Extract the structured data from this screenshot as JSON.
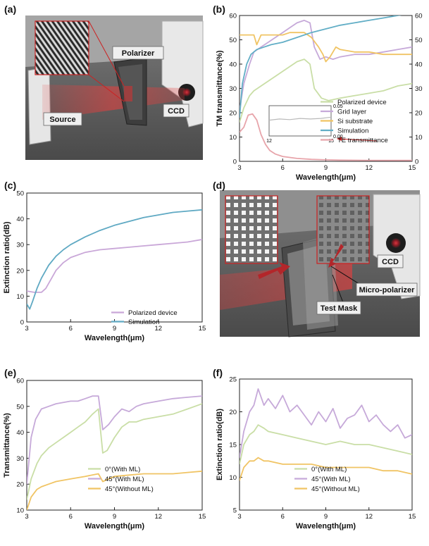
{
  "panels": {
    "a": {
      "letter": "(a)",
      "labels": {
        "polarizer": "Polarizer",
        "ccd": "CCD",
        "source": "Source"
      }
    },
    "d": {
      "letter": "(d)",
      "labels": {
        "ccd": "CCD",
        "micro_polarizer": "Micro-polarizer",
        "test_mask": "Test Mask"
      }
    }
  },
  "chart_data": [
    {
      "id": "b",
      "letter": "(b)",
      "type": "line",
      "xlabel": "Wavelength(μm)",
      "ylabel": "TM transmittance(%)",
      "xlim": [
        3,
        15
      ],
      "xticks": [
        3,
        6,
        9,
        12,
        15
      ],
      "ylim": [
        0,
        60
      ],
      "yticks": [
        0,
        10,
        20,
        30,
        40,
        50,
        60
      ],
      "y2lim": [
        0,
        60
      ],
      "y2ticks": [
        0,
        10,
        20,
        30,
        40,
        50,
        60
      ],
      "legend_position": "right",
      "series": [
        {
          "name": "Polarized device",
          "color": "#c9dea6",
          "x": [
            3,
            3.3,
            3.7,
            4,
            4.5,
            5,
            5.5,
            6,
            6.5,
            7,
            7.5,
            7.9,
            8.2,
            8.7,
            9.2,
            10,
            11,
            12,
            13,
            14,
            15
          ],
          "y": [
            16,
            22,
            27,
            29,
            31,
            33,
            35,
            37,
            39,
            41,
            42,
            40,
            30,
            26,
            25,
            26,
            27,
            28,
            29,
            31,
            32
          ]
        },
        {
          "name": "Grid layer",
          "color": "#c6a9d9",
          "x": [
            3,
            3.3,
            3.7,
            4,
            4.5,
            5,
            5.5,
            6,
            6.5,
            7,
            7.5,
            7.9,
            8.2,
            8.6,
            9,
            9.5,
            10,
            11,
            12,
            13,
            14,
            15
          ],
          "y": [
            21,
            32,
            40,
            45,
            47,
            49,
            51,
            53,
            55,
            57,
            58,
            57,
            47,
            42,
            43,
            42,
            43,
            44,
            44,
            45,
            46,
            47
          ]
        },
        {
          "name": "Si substrate",
          "color": "#f0c464",
          "x": [
            3,
            3.5,
            4,
            4.2,
            4.5,
            5,
            5.5,
            6,
            6.5,
            7,
            7.5,
            8,
            8.5,
            8.8,
            9,
            9.3,
            9.7,
            10,
            11,
            12,
            13,
            14,
            15
          ],
          "y": [
            52,
            52,
            52,
            48,
            52,
            52,
            52,
            52,
            53,
            53,
            53,
            51,
            47,
            44,
            41,
            43,
            47,
            46,
            45,
            45,
            44,
            44,
            44
          ]
        },
        {
          "name": "Simulation",
          "color": "#62aec6",
          "x": [
            3,
            3.2,
            3.5,
            3.8,
            4.2,
            4.7,
            5.2,
            6,
            7,
            8,
            9,
            10,
            11,
            12,
            13,
            14,
            15
          ],
          "y": [
            18,
            32,
            40,
            44,
            46,
            47,
            48,
            49,
            51,
            53,
            54.5,
            56,
            57,
            58,
            59,
            60,
            61
          ]
        },
        {
          "name": "TE transmittance",
          "color": "#e7a4aa",
          "x": [
            3,
            3.3,
            3.6,
            3.9,
            4.2,
            4.5,
            4.8,
            5.1,
            5.5,
            6,
            7,
            8,
            9,
            10,
            12,
            15
          ],
          "y": [
            12,
            14,
            19,
            19.5,
            17,
            11,
            7,
            4.5,
            3,
            2,
            1.2,
            0.8,
            0.6,
            0.5,
            0.4,
            0.4
          ]
        }
      ],
      "inset": {
        "xticks": [
          12,
          15
        ],
        "yticks": [
          0.0,
          0.05
        ],
        "color": "#b9b9b9",
        "x": [
          12,
          12.5,
          13,
          13.5,
          14,
          14.5,
          15
        ],
        "y": [
          0.026,
          0.028,
          0.027,
          0.029,
          0.028,
          0.029,
          0.031
        ]
      }
    },
    {
      "id": "c",
      "letter": "(c)",
      "type": "line",
      "xlabel": "Wavelength(μm)",
      "ylabel": "Extinction ratio(dB)",
      "xlim": [
        3,
        15
      ],
      "xticks": [
        3,
        6,
        9,
        12,
        15
      ],
      "ylim": [
        0,
        50
      ],
      "yticks": [
        0,
        10,
        20,
        30,
        40,
        50
      ],
      "legend_position": "bottom-right",
      "series": [
        {
          "name": "Polarized device",
          "color": "#c9a7d8",
          "x": [
            3,
            3.5,
            4,
            4.3,
            4.7,
            5,
            5.5,
            6,
            7,
            8,
            9,
            10,
            11,
            12,
            13,
            14,
            15
          ],
          "y": [
            12,
            11.5,
            11.5,
            13,
            17,
            20,
            23,
            25,
            27,
            28,
            28.5,
            29,
            29.5,
            30,
            30.5,
            31,
            32
          ]
        },
        {
          "name": "Simulation",
          "color": "#5fa9c3",
          "x": [
            3,
            3.2,
            3.4,
            3.7,
            4,
            4.5,
            5,
            5.5,
            6,
            7,
            8,
            9,
            10,
            11,
            12,
            13,
            14,
            15
          ],
          "y": [
            7,
            5,
            8,
            13,
            17,
            22,
            25.5,
            28,
            30,
            33,
            35.5,
            37.5,
            39,
            40.5,
            41.5,
            42.5,
            43,
            43.5
          ]
        }
      ]
    },
    {
      "id": "e",
      "letter": "(e)",
      "type": "line",
      "xlabel": "Wavelength(μm)",
      "ylabel": "Transmittance(%)",
      "xlim": [
        3,
        15
      ],
      "xticks": [
        3,
        6,
        9,
        12,
        15
      ],
      "ylim": [
        10,
        60
      ],
      "yticks": [
        10,
        20,
        30,
        40,
        50,
        60
      ],
      "legend_position": "bottom-left",
      "series": [
        {
          "name": "0°(With ML)",
          "color": "#c9dea6",
          "x": [
            3,
            3.3,
            3.7,
            4,
            4.5,
            5,
            5.5,
            6,
            6.5,
            7,
            7.5,
            7.9,
            8.2,
            8.5,
            9,
            9.5,
            10,
            10.5,
            11,
            12,
            13,
            14,
            15
          ],
          "y": [
            14,
            22,
            28,
            31,
            34,
            36,
            38,
            40,
            42,
            44,
            47,
            49,
            32,
            33,
            38,
            42,
            44,
            44,
            45,
            46,
            47,
            49,
            51
          ]
        },
        {
          "name": "45°(With ML)",
          "color": "#c6a9d9",
          "x": [
            3,
            3.3,
            3.6,
            4,
            4.5,
            5,
            5.5,
            6,
            6.5,
            7,
            7.5,
            7.9,
            8.2,
            8.6,
            9,
            9.5,
            10,
            10.5,
            11,
            12,
            13,
            14,
            15
          ],
          "y": [
            20,
            38,
            45,
            49,
            50,
            51,
            51.5,
            52,
            52,
            53,
            54,
            54,
            41,
            43,
            46,
            49,
            48,
            50,
            51,
            52,
            53,
            53.5,
            54
          ]
        },
        {
          "name": "45°(Without ML)",
          "color": "#f0c464",
          "x": [
            3,
            3.3,
            3.7,
            4,
            4.5,
            5,
            6,
            7,
            7.9,
            8.2,
            8.6,
            9,
            10,
            11,
            12,
            13,
            14,
            15
          ],
          "y": [
            10,
            15,
            18,
            19,
            20,
            21,
            22,
            23,
            24,
            21,
            22,
            23,
            23.5,
            24,
            24,
            24,
            24.5,
            25
          ]
        }
      ]
    },
    {
      "id": "f",
      "letter": "(f)",
      "type": "line",
      "xlabel": "Wavelength(μm)",
      "ylabel": "Extinction ratio(dB)",
      "xlim": [
        3,
        15
      ],
      "xticks": [
        3,
        6,
        9,
        12,
        15
      ],
      "ylim": [
        5,
        25
      ],
      "yticks": [
        5,
        10,
        15,
        20,
        25
      ],
      "legend_position": "bottom-left",
      "series": [
        {
          "name": "0°(With ML)",
          "color": "#c9dea6",
          "x": [
            3,
            3.3,
            3.7,
            4,
            4.3,
            4.7,
            5,
            6,
            7,
            8,
            9,
            10,
            11,
            12,
            13,
            14,
            15
          ],
          "y": [
            12,
            15,
            16.5,
            17,
            18,
            17.5,
            17,
            16.5,
            16,
            15.5,
            15,
            15.5,
            15,
            15,
            14.5,
            14,
            13.5
          ]
        },
        {
          "name": "45°(With ML)",
          "color": "#c6a9d9",
          "x": [
            3,
            3.3,
            3.7,
            4,
            4.3,
            4.7,
            5,
            5.5,
            6,
            6.5,
            7,
            7.5,
            8,
            8.5,
            9,
            9.5,
            10,
            10.5,
            11,
            11.5,
            12,
            12.5,
            13,
            13.5,
            14,
            14.5,
            15
          ],
          "y": [
            13,
            17,
            20,
            21,
            23.5,
            21,
            22,
            20.5,
            22.5,
            20,
            21,
            19.5,
            18,
            20,
            18.5,
            20.5,
            17.5,
            19,
            19.5,
            21,
            18.5,
            19.5,
            18,
            17,
            18,
            16,
            16.5
          ]
        },
        {
          "name": "45°(Without ML)",
          "color": "#f0c464",
          "x": [
            3,
            3.3,
            3.7,
            4,
            4.3,
            4.7,
            5,
            6,
            7,
            8,
            9,
            10,
            11,
            12,
            13,
            14,
            15
          ],
          "y": [
            9.5,
            11.5,
            12.5,
            12.5,
            13,
            12.5,
            12.5,
            12,
            12,
            12,
            11.5,
            11.5,
            11.5,
            11.5,
            11,
            11,
            10.5
          ]
        }
      ]
    }
  ]
}
